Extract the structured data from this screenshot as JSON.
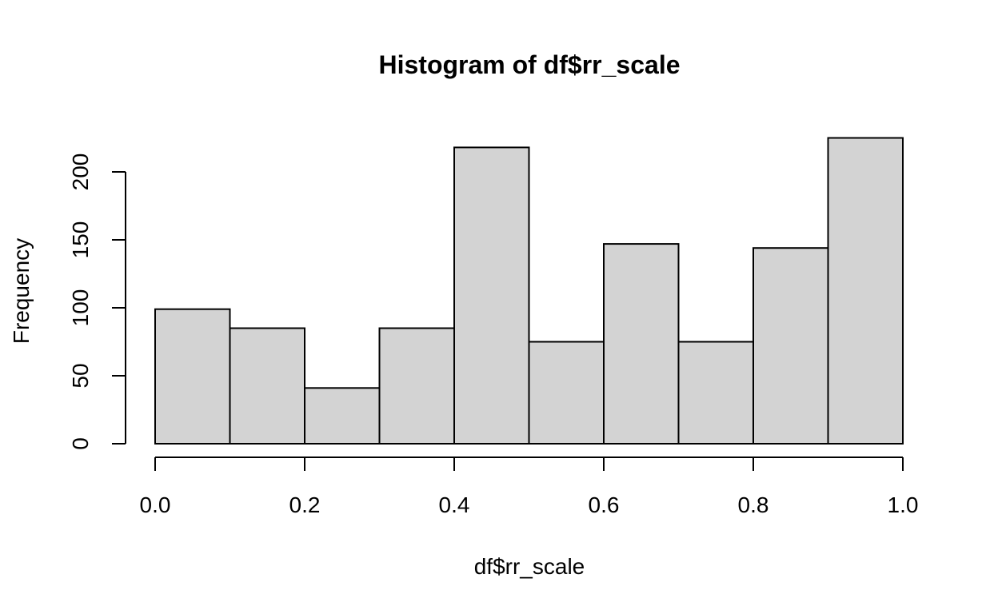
{
  "chart_data": {
    "type": "bar",
    "title": "Histogram of df$rr_scale",
    "xlabel": "df$rr_scale",
    "ylabel": "Frequency",
    "bins": [
      {
        "start": 0.0,
        "end": 0.1,
        "count": 99
      },
      {
        "start": 0.1,
        "end": 0.2,
        "count": 85
      },
      {
        "start": 0.2,
        "end": 0.3,
        "count": 41
      },
      {
        "start": 0.3,
        "end": 0.4,
        "count": 85
      },
      {
        "start": 0.4,
        "end": 0.5,
        "count": 218
      },
      {
        "start": 0.5,
        "end": 0.6,
        "count": 75
      },
      {
        "start": 0.6,
        "end": 0.7,
        "count": 147
      },
      {
        "start": 0.7,
        "end": 0.8,
        "count": 75
      },
      {
        "start": 0.8,
        "end": 0.9,
        "count": 144
      },
      {
        "start": 0.9,
        "end": 1.0,
        "count": 225
      }
    ],
    "xlim": [
      0,
      1
    ],
    "ylim": [
      0,
      225
    ],
    "x_ticks": [
      {
        "value": 0.0,
        "label": "0.0"
      },
      {
        "value": 0.2,
        "label": "0.2"
      },
      {
        "value": 0.4,
        "label": "0.4"
      },
      {
        "value": 0.6,
        "label": "0.6"
      },
      {
        "value": 0.8,
        "label": "0.8"
      },
      {
        "value": 1.0,
        "label": "1.0"
      }
    ],
    "y_ticks": [
      {
        "value": 0,
        "label": "0"
      },
      {
        "value": 50,
        "label": "50"
      },
      {
        "value": 100,
        "label": "100"
      },
      {
        "value": 150,
        "label": "150"
      },
      {
        "value": 200,
        "label": "200"
      }
    ],
    "colors": {
      "bar_fill": "#d3d3d3",
      "bar_stroke": "#000000"
    },
    "grid": false,
    "legend": "none"
  }
}
